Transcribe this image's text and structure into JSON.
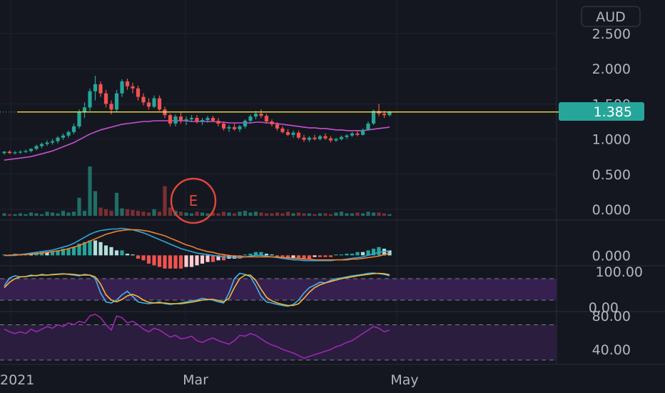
{
  "currency": "AUD",
  "event_marker": "E",
  "chart_data": [
    {
      "type": "candlestick",
      "name": "price",
      "y_ticks": [
        "2.500",
        "2.000",
        "1.500",
        "1.000",
        "0.500",
        "0.000"
      ],
      "ylim": [
        0,
        2.7
      ],
      "last_price": "1.385",
      "price_line": 1.385,
      "x_ticks": [
        "2021",
        "Mar",
        "May"
      ],
      "candles": [
        [
          0.8,
          0.83,
          0.78,
          0.82
        ],
        [
          0.82,
          0.84,
          0.79,
          0.8
        ],
        [
          0.8,
          0.83,
          0.78,
          0.81
        ],
        [
          0.81,
          0.84,
          0.79,
          0.82
        ],
        [
          0.82,
          0.85,
          0.8,
          0.83
        ],
        [
          0.83,
          0.87,
          0.81,
          0.86
        ],
        [
          0.86,
          0.92,
          0.84,
          0.9
        ],
        [
          0.9,
          0.95,
          0.87,
          0.93
        ],
        [
          0.93,
          0.98,
          0.9,
          0.95
        ],
        [
          0.95,
          1.0,
          0.92,
          0.97
        ],
        [
          0.97,
          1.04,
          0.94,
          1.02
        ],
        [
          1.02,
          1.08,
          0.99,
          1.05
        ],
        [
          1.05,
          1.12,
          1.02,
          1.1
        ],
        [
          1.1,
          1.22,
          1.07,
          1.18
        ],
        [
          1.18,
          1.42,
          1.15,
          1.38
        ],
        [
          1.38,
          1.52,
          1.3,
          1.45
        ],
        [
          1.45,
          1.72,
          1.4,
          1.68
        ],
        [
          1.68,
          1.9,
          1.55,
          1.78
        ],
        [
          1.78,
          1.82,
          1.6,
          1.65
        ],
        [
          1.65,
          1.7,
          1.45,
          1.5
        ],
        [
          1.5,
          1.55,
          1.35,
          1.42
        ],
        [
          1.42,
          1.7,
          1.38,
          1.65
        ],
        [
          1.65,
          1.85,
          1.6,
          1.82
        ],
        [
          1.82,
          1.86,
          1.7,
          1.75
        ],
        [
          1.75,
          1.8,
          1.65,
          1.72
        ],
        [
          1.72,
          1.76,
          1.55,
          1.6
        ],
        [
          1.6,
          1.65,
          1.48,
          1.52
        ],
        [
          1.52,
          1.58,
          1.42,
          1.46
        ],
        [
          1.46,
          1.62,
          1.44,
          1.58
        ],
        [
          1.58,
          1.62,
          1.4,
          1.42
        ],
        [
          1.42,
          1.46,
          1.3,
          1.34
        ],
        [
          1.34,
          1.36,
          1.18,
          1.22
        ],
        [
          1.22,
          1.35,
          1.18,
          1.32
        ],
        [
          1.32,
          1.38,
          1.22,
          1.26
        ],
        [
          1.26,
          1.32,
          1.2,
          1.28
        ],
        [
          1.28,
          1.34,
          1.24,
          1.3
        ],
        [
          1.3,
          1.34,
          1.22,
          1.25
        ],
        [
          1.25,
          1.3,
          1.2,
          1.27
        ],
        [
          1.27,
          1.33,
          1.23,
          1.3
        ],
        [
          1.3,
          1.33,
          1.24,
          1.26
        ],
        [
          1.26,
          1.3,
          1.18,
          1.22
        ],
        [
          1.22,
          1.25,
          1.12,
          1.15
        ],
        [
          1.15,
          1.2,
          1.1,
          1.17
        ],
        [
          1.17,
          1.22,
          1.12,
          1.14
        ],
        [
          1.14,
          1.2,
          1.1,
          1.18
        ],
        [
          1.18,
          1.28,
          1.15,
          1.26
        ],
        [
          1.26,
          1.35,
          1.22,
          1.32
        ],
        [
          1.32,
          1.4,
          1.28,
          1.36
        ],
        [
          1.36,
          1.42,
          1.3,
          1.33
        ],
        [
          1.33,
          1.36,
          1.22,
          1.25
        ],
        [
          1.25,
          1.28,
          1.18,
          1.21
        ],
        [
          1.21,
          1.24,
          1.12,
          1.15
        ],
        [
          1.15,
          1.18,
          1.08,
          1.1
        ],
        [
          1.1,
          1.14,
          1.04,
          1.06
        ],
        [
          1.06,
          1.12,
          1.02,
          1.09
        ],
        [
          1.09,
          1.12,
          1.0,
          1.02
        ],
        [
          1.02,
          1.06,
          0.96,
          0.99
        ],
        [
          0.99,
          1.04,
          0.96,
          1.02
        ],
        [
          1.02,
          1.06,
          0.98,
          1.0
        ],
        [
          1.0,
          1.06,
          0.98,
          1.04
        ],
        [
          1.04,
          1.08,
          0.99,
          1.01
        ],
        [
          1.01,
          1.04,
          0.95,
          0.98
        ],
        [
          0.98,
          1.02,
          0.96,
          1.0
        ],
        [
          1.0,
          1.05,
          0.98,
          1.03
        ],
        [
          1.03,
          1.07,
          1.0,
          1.05
        ],
        [
          1.05,
          1.1,
          1.03,
          1.08
        ],
        [
          1.08,
          1.12,
          1.04,
          1.06
        ],
        [
          1.06,
          1.15,
          1.05,
          1.13
        ],
        [
          1.13,
          1.25,
          1.12,
          1.22
        ],
        [
          1.22,
          1.42,
          1.2,
          1.4
        ],
        [
          1.4,
          1.5,
          1.32,
          1.36
        ],
        [
          1.36,
          1.4,
          1.3,
          1.34
        ],
        [
          1.34,
          1.4,
          1.32,
          1.385
        ]
      ],
      "ma": [
        0.7,
        0.71,
        0.72,
        0.73,
        0.74,
        0.75,
        0.77,
        0.79,
        0.81,
        0.83,
        0.86,
        0.89,
        0.92,
        0.95,
        0.99,
        1.03,
        1.07,
        1.1,
        1.13,
        1.15,
        1.17,
        1.19,
        1.21,
        1.22,
        1.23,
        1.24,
        1.25,
        1.25,
        1.26,
        1.26,
        1.26,
        1.26,
        1.26,
        1.26,
        1.26,
        1.25,
        1.25,
        1.25,
        1.25,
        1.25,
        1.24,
        1.24,
        1.23,
        1.23,
        1.23,
        1.23,
        1.23,
        1.24,
        1.24,
        1.23,
        1.23,
        1.22,
        1.21,
        1.2,
        1.19,
        1.18,
        1.17,
        1.16,
        1.16,
        1.15,
        1.15,
        1.14,
        1.13,
        1.13,
        1.12,
        1.12,
        1.12,
        1.12,
        1.13,
        1.14,
        1.15,
        1.16,
        1.17
      ]
    },
    {
      "type": "bar",
      "name": "volume",
      "values": [
        3,
        2,
        2,
        3,
        2,
        4,
        3,
        2,
        5,
        4,
        3,
        6,
        4,
        5,
        7,
        6,
        9,
        12,
        10,
        8,
        6,
        13,
        9,
        8,
        7,
        6,
        5,
        4,
        8,
        5,
        16,
        10,
        6,
        5,
        4,
        3,
        5,
        4,
        3,
        4,
        3,
        5,
        4,
        3,
        5,
        6,
        4,
        5,
        4,
        3,
        3,
        4,
        3,
        5,
        3,
        4,
        3,
        3,
        2,
        3,
        3,
        2,
        4,
        5,
        3,
        3,
        4,
        3,
        5,
        4,
        4,
        3,
        2
      ],
      "big": {
        "14": 22,
        "16": 60,
        "17": 30,
        "21": 28,
        "30": 36
      }
    },
    {
      "type": "line",
      "name": "macd",
      "y_ticks": [
        "0.000"
      ],
      "macd": [
        0,
        0,
        0.01,
        0.01,
        0.02,
        0.03,
        0.04,
        0.05,
        0.06,
        0.07,
        0.09,
        0.11,
        0.13,
        0.16,
        0.2,
        0.24,
        0.28,
        0.31,
        0.33,
        0.34,
        0.35,
        0.35,
        0.36,
        0.35,
        0.34,
        0.32,
        0.3,
        0.27,
        0.24,
        0.21,
        0.18,
        0.15,
        0.12,
        0.09,
        0.07,
        0.05,
        0.03,
        0.02,
        0.01,
        0,
        -0.01,
        -0.02,
        -0.02,
        -0.03,
        -0.03,
        -0.02,
        -0.01,
        0,
        0,
        -0.01,
        -0.02,
        -0.03,
        -0.04,
        -0.05,
        -0.06,
        -0.06,
        -0.07,
        -0.07,
        -0.07,
        -0.07,
        -0.07,
        -0.07,
        -0.06,
        -0.06,
        -0.05,
        -0.04,
        -0.03,
        -0.02,
        0,
        0.02,
        0.04,
        0.05,
        0.06
      ],
      "signal": [
        0,
        0,
        0,
        0.01,
        0.01,
        0.02,
        0.02,
        0.03,
        0.04,
        0.05,
        0.06,
        0.07,
        0.09,
        0.11,
        0.13,
        0.16,
        0.19,
        0.22,
        0.25,
        0.28,
        0.3,
        0.32,
        0.33,
        0.34,
        0.34,
        0.34,
        0.33,
        0.32,
        0.3,
        0.28,
        0.26,
        0.23,
        0.2,
        0.17,
        0.14,
        0.12,
        0.09,
        0.07,
        0.05,
        0.04,
        0.02,
        0.01,
        0,
        -0.01,
        -0.01,
        -0.02,
        -0.02,
        -0.02,
        -0.02,
        -0.02,
        -0.02,
        -0.02,
        -0.03,
        -0.03,
        -0.04,
        -0.04,
        -0.05,
        -0.05,
        -0.06,
        -0.06,
        -0.06,
        -0.06,
        -0.06,
        -0.06,
        -0.06,
        -0.05,
        -0.05,
        -0.04,
        -0.03,
        -0.02,
        -0.01,
        0.01,
        0.03
      ],
      "ylim": [
        -0.12,
        0.45
      ]
    },
    {
      "type": "line",
      "name": "stochastic",
      "y_ticks": [
        "100.00",
        "0.00"
      ],
      "band": [
        20,
        80
      ],
      "k": [
        60,
        82,
        88,
        85,
        86,
        90,
        88,
        92,
        90,
        92,
        93,
        94,
        92,
        90,
        88,
        92,
        90,
        80,
        40,
        15,
        12,
        20,
        35,
        45,
        30,
        15,
        12,
        10,
        12,
        15,
        10,
        8,
        10,
        12,
        15,
        18,
        20,
        25,
        22,
        20,
        15,
        12,
        40,
        80,
        95,
        92,
        85,
        60,
        30,
        15,
        12,
        8,
        5,
        3,
        8,
        20,
        40,
        55,
        62,
        70,
        68,
        75,
        80,
        82,
        85,
        88,
        90,
        92,
        95,
        96,
        94,
        92,
        88
      ],
      "d": [
        55,
        70,
        80,
        85,
        86,
        88,
        89,
        90,
        90,
        91,
        92,
        93,
        93,
        92,
        90,
        90,
        90,
        85,
        65,
        35,
        20,
        15,
        22,
        32,
        36,
        30,
        20,
        14,
        12,
        12,
        12,
        10,
        10,
        10,
        12,
        14,
        17,
        20,
        22,
        22,
        19,
        15,
        25,
        55,
        80,
        90,
        90,
        75,
        50,
        28,
        18,
        12,
        8,
        5,
        5,
        10,
        25,
        42,
        55,
        63,
        68,
        72,
        76,
        80,
        83,
        85,
        88,
        90,
        92,
        94,
        95,
        94,
        91
      ],
      "ylim": [
        0,
        100
      ]
    },
    {
      "type": "line",
      "name": "rsi",
      "y_ticks": [
        "80.00",
        "40.00"
      ],
      "band": [
        30,
        70
      ],
      "values": [
        65,
        62,
        60,
        62,
        60,
        65,
        62,
        65,
        68,
        66,
        70,
        68,
        72,
        70,
        74,
        72,
        80,
        82,
        78,
        70,
        64,
        80,
        78,
        72,
        74,
        70,
        65,
        62,
        66,
        64,
        60,
        56,
        58,
        54,
        55,
        57,
        52,
        50,
        53,
        55,
        52,
        50,
        48,
        52,
        58,
        57,
        60,
        58,
        54,
        50,
        47,
        45,
        42,
        40,
        38,
        35,
        32,
        34,
        36,
        38,
        40,
        42,
        45,
        47,
        50,
        52,
        56,
        60,
        64,
        68,
        66,
        62,
        64
      ],
      "ylim": [
        25,
        85
      ]
    }
  ]
}
